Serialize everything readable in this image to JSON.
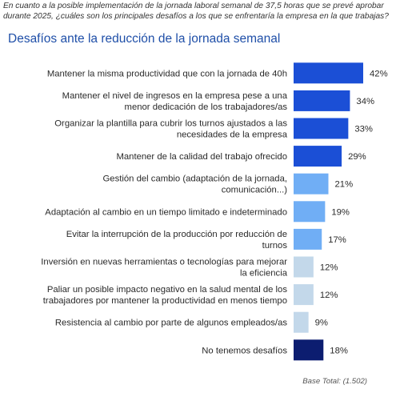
{
  "question": "En cuanto a la posible implementación de la jornada laboral semanal de 37,5 horas que se prevé aprobar durante 2025, ¿cuáles son los principales desafíos a los que se enfrentaría la empresa en la que trabajas?",
  "chart_data": {
    "type": "bar",
    "orientation": "horizontal",
    "title": "Desafíos ante la reducción de la jornada semanal",
    "categories": [
      [
        "Mantener la misma productividad que con la jornada de 40h"
      ],
      [
        "Mantener el nivel de ingresos en la empresa pese a una",
        "menor dedicación de los trabajadores/as"
      ],
      [
        "Organizar la plantilla para cubrir los turnos ajustados a las",
        "necesidades de la empresa"
      ],
      [
        "Mantener de la calidad del trabajo ofrecido"
      ],
      [
        "Gestión del cambio (adaptación de la jornada,",
        "comunicación...)"
      ],
      [
        "Adaptación al cambio en un tiempo limitado e indeterminado"
      ],
      [
        "Evitar la interrupción de la producción por reducción de",
        "turnos"
      ],
      [
        "Inversión en nuevas herramientas o tecnologías para mejorar",
        "la eficiencia"
      ],
      [
        "Paliar un posible impacto negativo en la salud mental de los",
        "trabajadores por mantener la productividad en menos tiempo"
      ],
      [
        "Resistencia al cambio por parte de algunos empleados/as"
      ],
      [
        "No tenemos desafíos"
      ]
    ],
    "values": [
      42,
      34,
      33,
      29,
      21,
      19,
      17,
      12,
      12,
      9,
      18
    ],
    "value_labels": [
      "42%",
      "34%",
      "33%",
      "29%",
      "21%",
      "19%",
      "17%",
      "12%",
      "12%",
      "9%",
      "18%"
    ],
    "colors": [
      "#1b4fd6",
      "#1b4fd6",
      "#1b4fd6",
      "#1b4fd6",
      "#70aef5",
      "#70aef5",
      "#70aef5",
      "#c3d8ea",
      "#c3d8ea",
      "#c3d8ea",
      "#0c1d70"
    ],
    "unit": "%",
    "xlim": [
      0,
      42
    ]
  },
  "footer": "Base Total: (1.502)"
}
